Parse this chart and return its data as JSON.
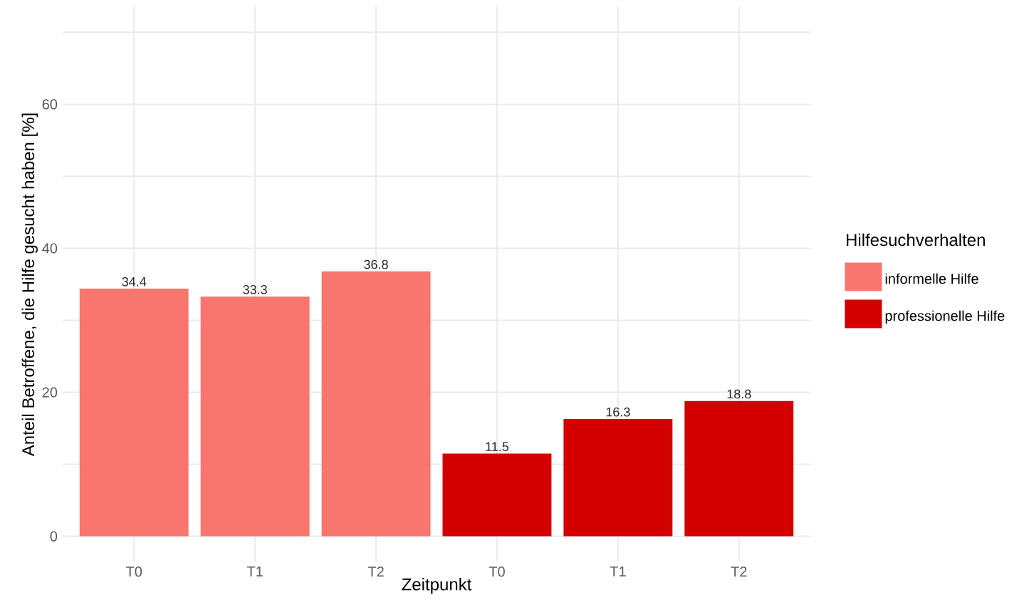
{
  "chart_data": {
    "type": "bar",
    "xlabel": "Zeitpunkt",
    "ylabel": "Anteil Betroffene, die Hilfe gesucht haben [%]",
    "legend_title": "Hilfesuchverhalten",
    "categories": [
      "T0",
      "T1",
      "T2",
      "T0",
      "T1",
      "T2"
    ],
    "series": [
      {
        "name": "informelle Hilfe",
        "color": "#f8766d",
        "values": [
          34.4,
          33.3,
          36.8,
          null,
          null,
          null
        ]
      },
      {
        "name": "professionelle Hilfe",
        "color": "#d40000",
        "values": [
          null,
          null,
          null,
          11.5,
          16.3,
          18.8
        ]
      }
    ],
    "ylim": [
      -3.5,
      73.5
    ],
    "yticks": [
      0,
      {
        "value": 10,
        "label": null
      },
      20,
      {
        "value": 30,
        "label": null
      },
      40,
      {
        "value": 50,
        "label": null
      },
      60,
      {
        "value": 70,
        "label": null
      }
    ],
    "grid": true,
    "legend": "right",
    "data_labels": true
  }
}
